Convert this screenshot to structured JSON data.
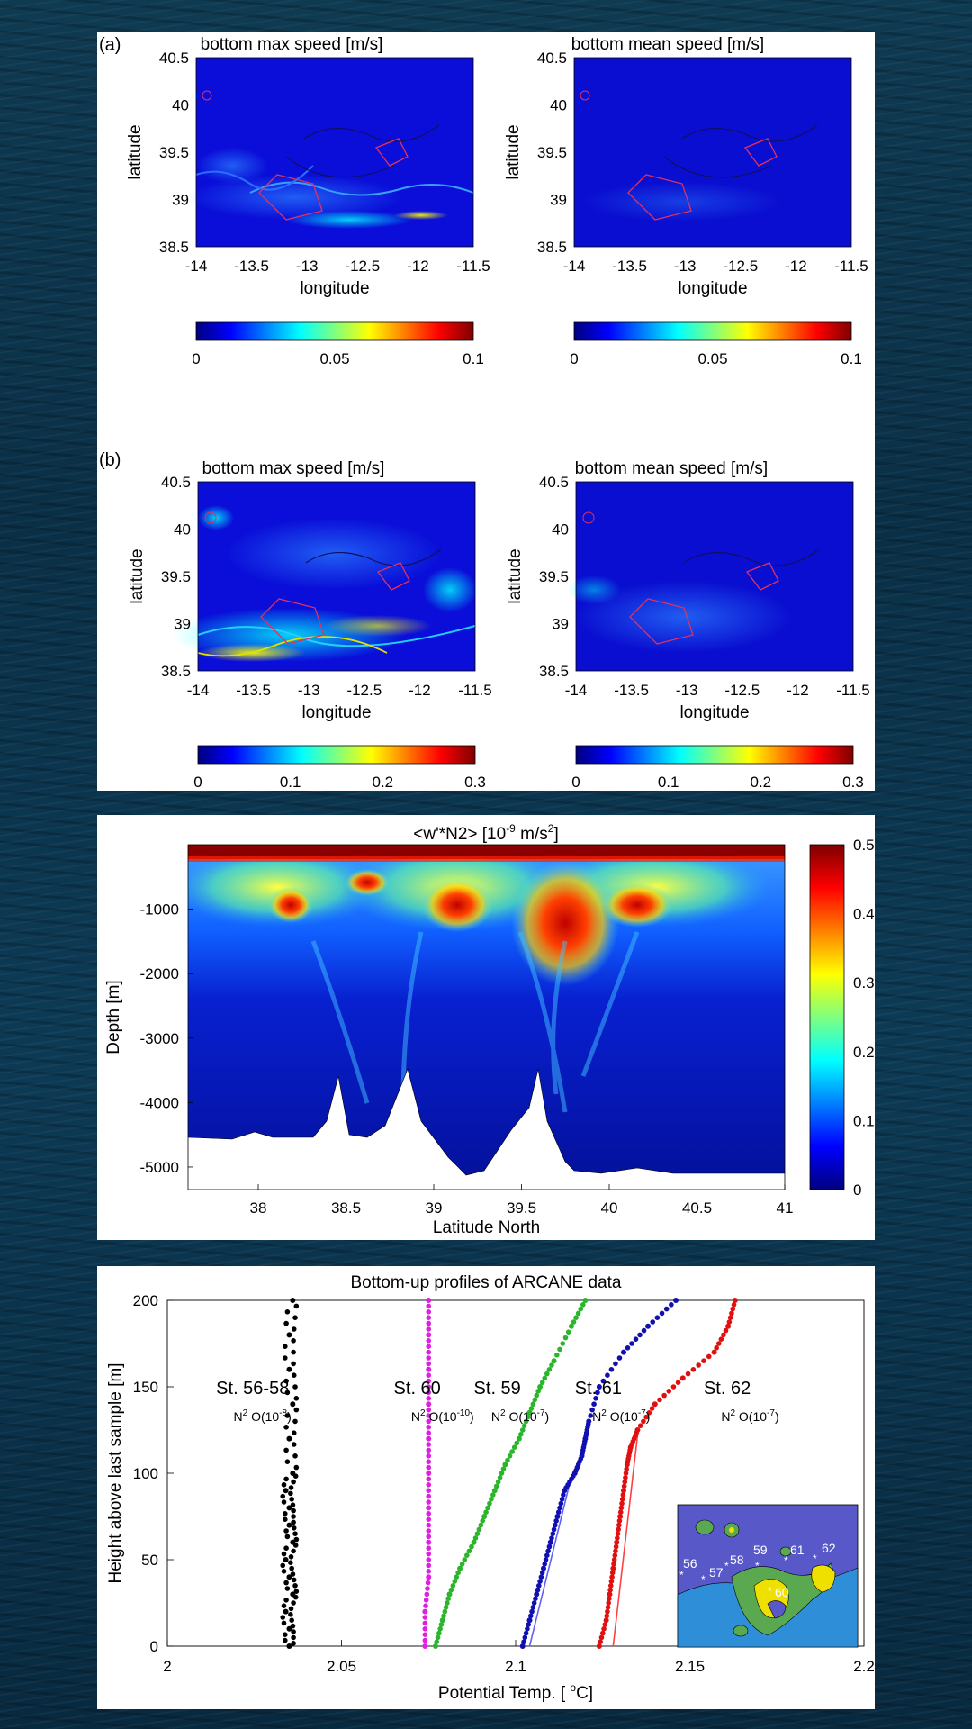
{
  "colors": {
    "jet": [
      "#00007f",
      "#0000ff",
      "#007fff",
      "#00ffff",
      "#7fff7f",
      "#ffff00",
      "#ff7f00",
      "#ff0000",
      "#7f0000"
    ]
  },
  "speed_maps": {
    "panels": [
      {
        "tag": "(a)",
        "left_title": "bottom max speed [m/s]",
        "right_title": "bottom mean speed [m/s]",
        "cbar_ticks": [
          "0",
          "0.05",
          "0.1"
        ]
      },
      {
        "tag": "(b)",
        "left_title": "bottom max speed [m/s]",
        "right_title": "bottom mean speed [m/s]",
        "cbar_ticks": [
          "0",
          "0.1",
          "0.2",
          "0.3"
        ]
      }
    ],
    "ylabel": "latitude",
    "xlabel": "longitude",
    "yticks": [
      "40.5",
      "40",
      "39.5",
      "39",
      "38.5"
    ],
    "xticks_left": [
      "-14",
      "-13.5",
      "-13",
      "-12.5",
      "-12",
      "-11.5"
    ],
    "xticks_right": [
      "-14",
      "-13.5",
      "-13",
      "-12.5",
      "-12",
      "-11.5"
    ]
  },
  "wn2_section": {
    "title": "<w'*N2> [10",
    "title_exp": "-9",
    "title_unit": " m/s",
    "title_unit_exp": "2",
    "title_end": "]",
    "ylabel": "Depth [m]",
    "xlabel": "Latitude North",
    "yticks": [
      "-1000",
      "-2000",
      "-3000",
      "-4000",
      "-5000"
    ],
    "xticks": [
      "38",
      "38.5",
      "39",
      "39.5",
      "40",
      "40.5",
      "41"
    ],
    "cbar_ticks": [
      "0.5",
      "0.4",
      "0.3",
      "0.2",
      "0.1",
      "0"
    ]
  },
  "chart_data": {
    "type": "scatter",
    "title": "Bottom-up profiles of ARCANE data",
    "xlabel": "Potential Temp. [",
    "xlabel_deg": "o",
    "xlabel_unit": "C]",
    "ylabel": "Height above last sample [m]",
    "xlim": [
      2,
      2.2
    ],
    "ylim": [
      0,
      200
    ],
    "xticks": [
      "2",
      "2.05",
      "2.1",
      "2.15",
      "2.2"
    ],
    "yticks": [
      "0",
      "50",
      "100",
      "150",
      "200"
    ],
    "series": [
      {
        "name": "St. 56-58",
        "n2": "O(10",
        "n2_exp": "-8",
        "color": "#000000",
        "x": [
          2.035,
          2.035,
          2.034,
          2.036,
          2.035,
          2.034,
          2.036,
          2.035,
          2.035,
          2.034,
          2.036,
          2.035,
          2.036,
          2.035,
          2.035,
          2.036
        ],
        "y": [
          0,
          10,
          20,
          30,
          40,
          50,
          60,
          70,
          80,
          90,
          100,
          120,
          140,
          160,
          180,
          200
        ]
      },
      {
        "name": "St. 60",
        "n2": "O(10",
        "n2_exp": "-10",
        "color": "#e020e0",
        "x": [
          2.074,
          2.074,
          2.075,
          2.075,
          2.075,
          2.075,
          2.075,
          2.075,
          2.075,
          2.075,
          2.075
        ],
        "y": [
          0,
          20,
          40,
          60,
          80,
          100,
          120,
          140,
          160,
          180,
          200
        ]
      },
      {
        "name": "St. 59",
        "n2": "O(10",
        "n2_exp": "-7",
        "color": "#2ab52a",
        "x": [
          2.077,
          2.079,
          2.081,
          2.084,
          2.088,
          2.091,
          2.094,
          2.097,
          2.101,
          2.104,
          2.107,
          2.111,
          2.116,
          2.12
        ],
        "y": [
          0,
          15,
          30,
          45,
          60,
          75,
          90,
          105,
          120,
          135,
          150,
          165,
          185,
          200
        ]
      },
      {
        "name": "St. 61",
        "n2": "O(10",
        "n2_exp": "-7",
        "color": "#1010b0",
        "x": [
          2.102,
          2.104,
          2.106,
          2.108,
          2.11,
          2.112,
          2.114,
          2.117,
          2.119,
          2.12,
          2.121,
          2.124,
          2.131,
          2.138,
          2.146
        ],
        "y": [
          0,
          15,
          30,
          45,
          60,
          75,
          90,
          100,
          110,
          120,
          130,
          150,
          170,
          185,
          200
        ]
      },
      {
        "name": "St. 62",
        "n2": "O(10",
        "n2_exp": "-7",
        "color": "#e01010",
        "x": [
          2.124,
          2.126,
          2.127,
          2.128,
          2.129,
          2.13,
          2.131,
          2.132,
          2.133,
          2.135,
          2.14,
          2.148,
          2.157,
          2.161,
          2.163
        ],
        "y": [
          0,
          15,
          30,
          45,
          60,
          75,
          90,
          105,
          115,
          125,
          140,
          155,
          170,
          185,
          200
        ]
      }
    ],
    "fit_lines": [
      {
        "color": "#6060ff",
        "x": [
          2.104,
          2.116
        ],
        "y": [
          0,
          98
        ]
      },
      {
        "color": "#ff4040",
        "x": [
          2.128,
          2.135
        ],
        "y": [
          0,
          122
        ]
      }
    ],
    "inset_stations": [
      "56",
      "57",
      "58",
      "59",
      "61",
      "62",
      "60"
    ]
  }
}
